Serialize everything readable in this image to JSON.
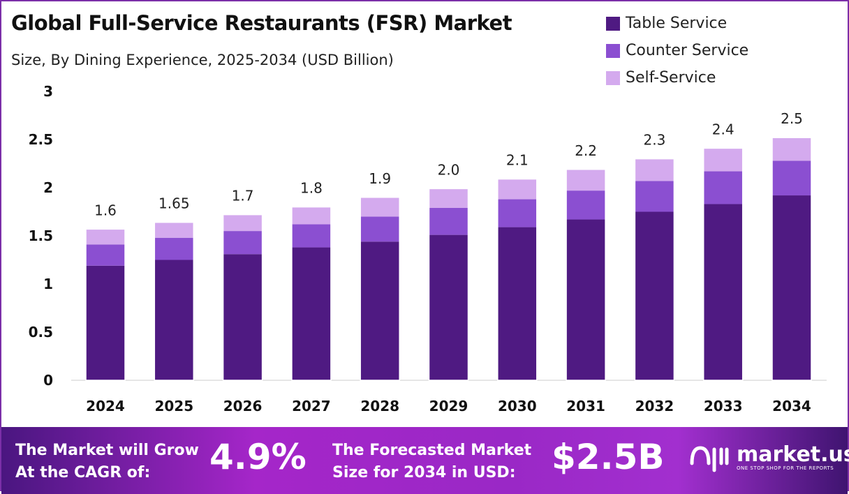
{
  "chart_data": {
    "type": "bar",
    "stacked": true,
    "title": "Global Full-Service Restaurants (FSR) Market",
    "subtitle": "Size, By Dining Experience, 2025-2034 (USD Billion)",
    "categories": [
      "2024",
      "2025",
      "2026",
      "2027",
      "2028",
      "2029",
      "2030",
      "2031",
      "2032",
      "2033",
      "2034"
    ],
    "series": [
      {
        "name": "Table Service",
        "color": "#4f1a82",
        "values": [
          1.19,
          1.25,
          1.31,
          1.38,
          1.44,
          1.51,
          1.59,
          1.67,
          1.75,
          1.83,
          1.92
        ]
      },
      {
        "name": "Counter Service",
        "color": "#8b4fd1",
        "values": [
          0.22,
          0.23,
          0.24,
          0.24,
          0.26,
          0.28,
          0.29,
          0.3,
          0.32,
          0.34,
          0.36
        ]
      },
      {
        "name": "Self-Service",
        "color": "#d4aaee",
        "values": [
          0.16,
          0.16,
          0.17,
          0.18,
          0.2,
          0.2,
          0.21,
          0.22,
          0.23,
          0.24,
          0.24
        ]
      }
    ],
    "totals_labels": [
      "1.6",
      "1.65",
      "1.7",
      "1.8",
      "1.9",
      "2.0",
      "2.1",
      "2.2",
      "2.3",
      "2.4",
      "2.5"
    ],
    "yticks": [
      "0",
      "0.5",
      "1",
      "1.5",
      "2",
      "2.5",
      "3"
    ],
    "ylim": [
      0,
      3
    ],
    "grid": false,
    "legend": "top-right"
  },
  "footer": {
    "cagr_text_1": "The Market will Grow",
    "cagr_text_2": "At the CAGR of:",
    "cagr_value": "4.9%",
    "forecast_text_1": "The Forecasted Market",
    "forecast_text_2": "Size for 2034 in USD:",
    "forecast_value": "$2.5B",
    "logo_name": "market.us",
    "logo_tagline": "ONE STOP SHOP FOR THE REPORTS"
  }
}
